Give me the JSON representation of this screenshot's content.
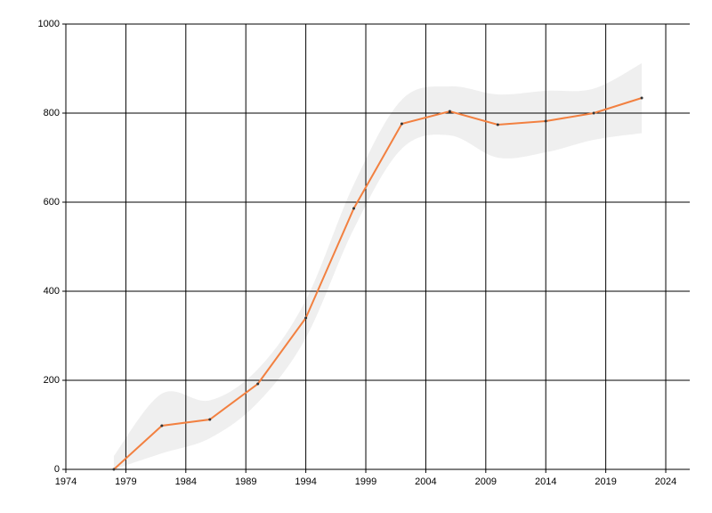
{
  "chart_data": {
    "type": "line",
    "x": [
      1978,
      1982,
      1986,
      1990,
      1994,
      1998,
      2002,
      2006,
      2010,
      2014,
      2018,
      2022
    ],
    "series": [
      {
        "color": "#f28040",
        "values": [
          0,
          98,
          112,
          192,
          340,
          586,
          776,
          804,
          774,
          782,
          800,
          834
        ]
      }
    ],
    "band": {
      "color": "#efefef",
      "upper": [
        30,
        170,
        155,
        225,
        380,
        640,
        830,
        860,
        842,
        850,
        855,
        912
      ],
      "lower": [
        0,
        36,
        70,
        150,
        295,
        540,
        720,
        750,
        700,
        712,
        740,
        755
      ]
    },
    "xlim": [
      1974,
      2026
    ],
    "xticks": [
      1974,
      1979,
      1984,
      1989,
      1994,
      1999,
      2004,
      2009,
      2014,
      2019,
      2024
    ],
    "ylim": [
      0,
      1000
    ],
    "yticks": [
      0,
      200,
      400,
      600,
      800,
      1000
    ],
    "grid": true
  }
}
